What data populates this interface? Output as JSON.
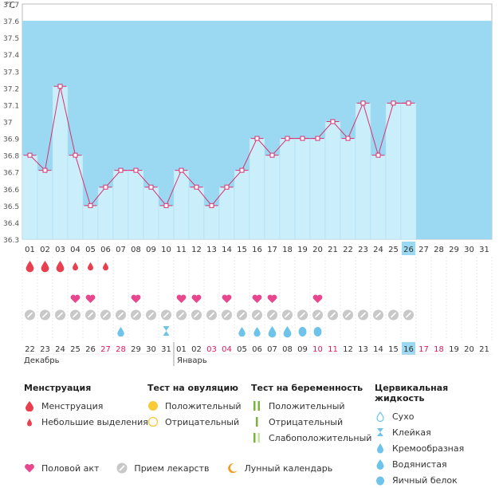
{
  "chart_data": {
    "type": "line",
    "unit": "°C",
    "ylim": [
      36.3,
      37.7
    ],
    "yticks": [
      "36.3",
      "36.4",
      "36.5",
      "36.6",
      "36.7",
      "36.8",
      "36.9",
      "37",
      "37.1",
      "37.2",
      "37.3",
      "37.4",
      "37.5",
      "37.6",
      "37.7"
    ],
    "days": [
      "01",
      "02",
      "03",
      "04",
      "05",
      "06",
      "07",
      "08",
      "09",
      "10",
      "11",
      "12",
      "13",
      "14",
      "15",
      "16",
      "17",
      "18",
      "19",
      "20",
      "21",
      "22",
      "23",
      "24",
      "25",
      "26",
      "27",
      "28",
      "29",
      "30",
      "31"
    ],
    "temperatures": [
      36.8,
      36.71,
      37.21,
      36.8,
      36.5,
      36.61,
      36.71,
      36.71,
      36.61,
      36.5,
      36.71,
      36.61,
      36.5,
      36.61,
      36.71,
      36.9,
      36.8,
      36.9,
      36.9,
      36.9,
      37.0,
      36.9,
      37.11,
      36.8,
      37.11,
      37.11
    ],
    "today_index": 25,
    "dates": [
      "22",
      "23",
      "24",
      "25",
      "26",
      "27",
      "28",
      "29",
      "30",
      "31",
      "01",
      "02",
      "03",
      "04",
      "05",
      "06",
      "07",
      "08",
      "09",
      "10",
      "11",
      "12",
      "13",
      "14",
      "15",
      "16",
      "17",
      "18",
      "19",
      "20",
      "21"
    ],
    "date_weekend": [
      false,
      false,
      false,
      false,
      false,
      true,
      true,
      false,
      false,
      false,
      false,
      false,
      true,
      true,
      false,
      false,
      false,
      false,
      false,
      true,
      true,
      false,
      false,
      false,
      false,
      false,
      true,
      true,
      false,
      false,
      false
    ],
    "month_labels": [
      "Декабрь",
      "Январь"
    ],
    "menstruation": [
      "big",
      "big",
      "big",
      "small",
      "small",
      "small"
    ],
    "sex_days": [
      3,
      4,
      7,
      10,
      11,
      13,
      15,
      16,
      19
    ],
    "meds_count": 26,
    "cervical": {
      "9": "sticky",
      "14": "creamy",
      "15": "creamy",
      "16": "watery",
      "17": "watery",
      "18": "eggwhite",
      "19": "eggwhite",
      "6": "creamy"
    },
    "colors": {
      "sky": "#9ad9f1",
      "bar": "#cbeefb",
      "line": "#d8326f",
      "red": "#e8404e",
      "pink": "#e8468d",
      "blue": "#6ec3ea",
      "gray": "#c8c8c8",
      "today": "#9ad9f1"
    }
  },
  "legend": {
    "menstruation": {
      "title": "Менструация",
      "items": [
        "Менструация",
        "Небольшие выделения"
      ]
    },
    "ovulation": {
      "title": "Тест на овуляцию",
      "items": [
        "Положительный",
        "Отрицательный"
      ]
    },
    "pregnancy": {
      "title": "Тест на беременность",
      "items": [
        "Положительный",
        "Отрицательный",
        "Слабоположительный"
      ]
    },
    "cervical": {
      "title": "Цервикальная жидкость",
      "items": [
        "Сухо",
        "Клейкая",
        "Кремообразная",
        "Водянистая",
        "Яичный белок"
      ]
    },
    "bottom": {
      "sex": "Половой акт",
      "meds": "Прием лекарств",
      "lunar": "Лунный календарь"
    }
  }
}
